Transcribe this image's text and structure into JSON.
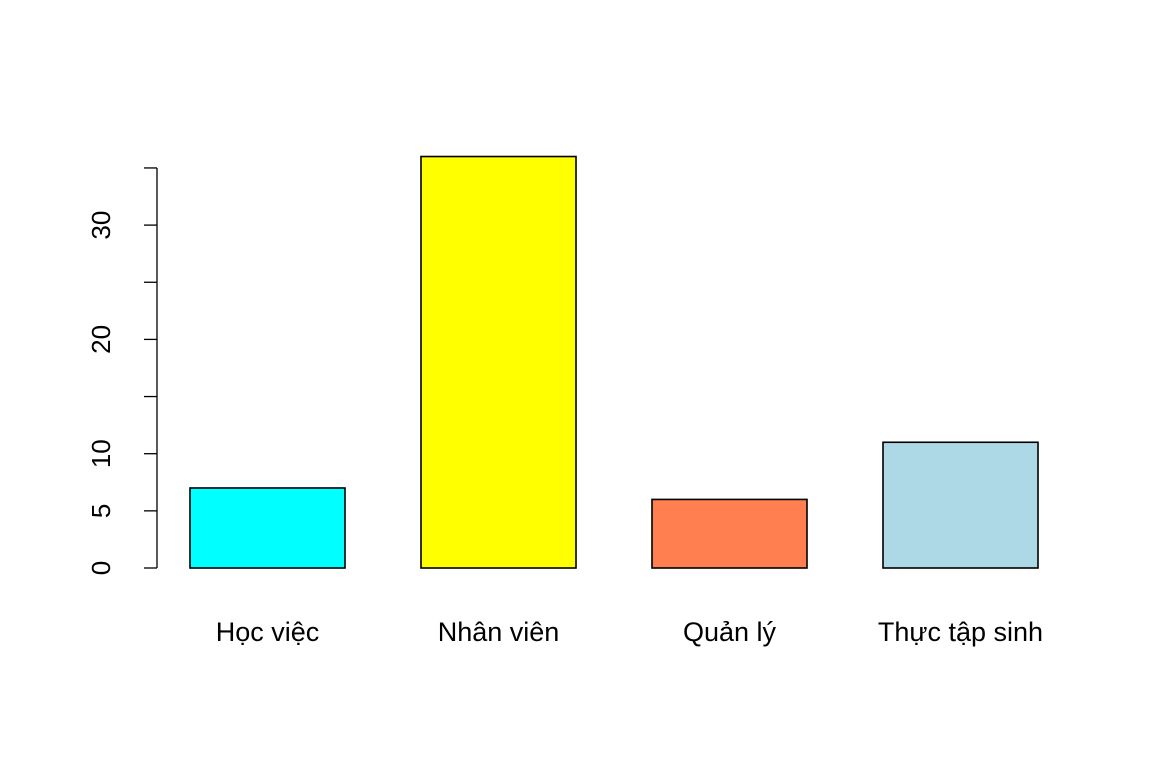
{
  "chart_data": {
    "type": "bar",
    "title": "",
    "xlabel": "",
    "ylabel": "",
    "categories": [
      "Học việc",
      "Nhân viên",
      "Quản lý",
      "Thực tập sinh"
    ],
    "values": [
      7,
      36,
      6,
      11
    ],
    "colors": [
      "#00ffff",
      "#ffff00",
      "#ff7f50",
      "#add8e6"
    ],
    "ylim": [
      0,
      35
    ],
    "yticks": [
      0,
      5,
      10,
      15,
      20,
      25,
      30,
      35
    ],
    "ytick_labels": [
      "0",
      "5",
      "10",
      "",
      "20",
      "",
      "30",
      ""
    ],
    "grid": false,
    "legend": "none"
  }
}
